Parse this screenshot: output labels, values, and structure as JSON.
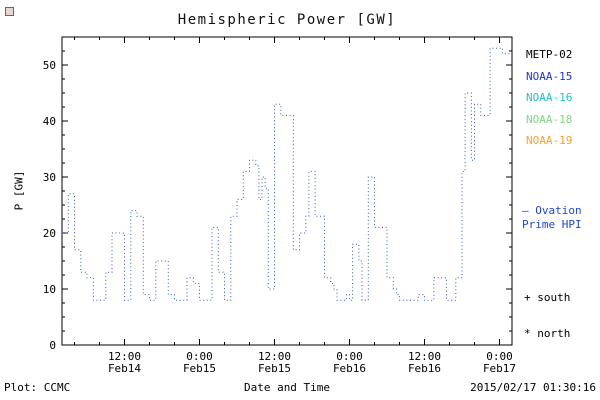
{
  "footer": {
    "plot_credit": "Plot: CCMC",
    "timestamp": "2015/02/17 01:30:16"
  },
  "legend": {
    "satellites": [
      {
        "label": "METP-02",
        "color": "#000000"
      },
      {
        "label": "NOAA-15",
        "color": "#2233cc"
      },
      {
        "label": "NOAA-16",
        "color": "#22c3c3"
      },
      {
        "label": "NOAA-18",
        "color": "#7fd87f"
      },
      {
        "label": "NOAA-19",
        "color": "#ff9e2a"
      }
    ],
    "ovation": {
      "line1": "– Ovation",
      "line2": "Prime HPI",
      "color": "#2244cc"
    },
    "markers": [
      {
        "text": "+ south"
      },
      {
        "text": "* north"
      }
    ]
  },
  "chart_data": {
    "type": "line",
    "step": true,
    "line_style": "dotted",
    "line_color": "#2f55cc",
    "title": "Hemispheric Power [GW]",
    "xlabel": "Date and Time",
    "ylabel": "P [GW]",
    "ylim": [
      0,
      55
    ],
    "yticks": [
      0,
      10,
      20,
      30,
      40,
      50
    ],
    "xlim_hours": [
      2,
      74
    ],
    "minor_x_hours": 4,
    "xticks": [
      {
        "t": 12,
        "label": "12:00",
        "sub": "Feb14"
      },
      {
        "t": 24,
        "label": "0:00",
        "sub": "Feb15"
      },
      {
        "t": 36,
        "label": "12:00",
        "sub": "Feb15"
      },
      {
        "t": 48,
        "label": "0:00",
        "sub": "Feb16"
      },
      {
        "t": 60,
        "label": "12:00",
        "sub": "Feb16"
      },
      {
        "t": 72,
        "label": "0:00",
        "sub": "Feb17"
      }
    ],
    "series": [
      {
        "name": "Ovation Prime HPI",
        "t_hours": [
          2,
          3,
          4,
          5,
          6,
          7,
          9,
          10,
          12,
          13,
          14,
          15,
          16,
          17,
          19,
          20,
          22,
          23,
          24,
          26,
          27,
          28,
          29,
          30,
          31,
          32,
          33,
          33.5,
          34,
          34.5,
          35,
          36,
          37,
          39,
          40,
          41,
          41.5,
          42.5,
          44,
          45,
          45.5,
          46,
          47.5,
          48,
          48.5,
          49.5,
          50,
          51,
          52,
          54,
          55,
          55.5,
          56,
          59,
          60,
          61.5,
          63.5,
          65,
          66,
          66.5,
          67.5,
          68,
          69,
          70.5,
          72.5
        ],
        "values": [
          20,
          27,
          17,
          13,
          12,
          8,
          13,
          20,
          8,
          24,
          23,
          9,
          8,
          15,
          9,
          8,
          12,
          11,
          8,
          21,
          13,
          8,
          23,
          26,
          31,
          33,
          32,
          26,
          30,
          28,
          10,
          43,
          41,
          17,
          20,
          23,
          31,
          23,
          12,
          11,
          10,
          8,
          9,
          8,
          18,
          15,
          8,
          30,
          21,
          12,
          10,
          9,
          8,
          9,
          8,
          12,
          8,
          12,
          31,
          45,
          33,
          43,
          41,
          53,
          52
        ]
      }
    ]
  }
}
